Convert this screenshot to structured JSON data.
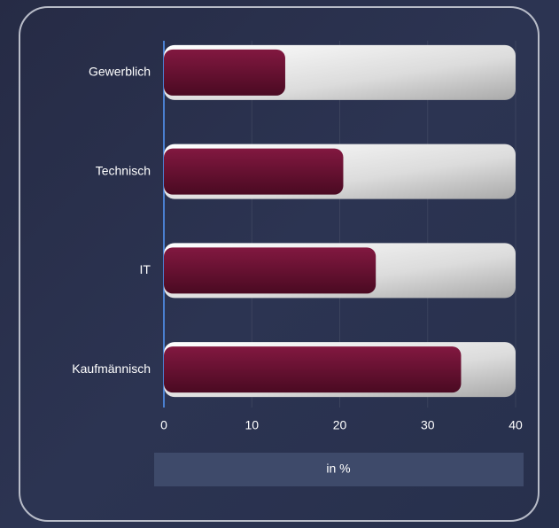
{
  "chart_data": {
    "type": "barh",
    "categories": [
      "Gewerblich",
      "Technisch",
      "IT",
      "Kaufmännisch"
    ],
    "values": [
      13.8,
      20.4,
      24.1,
      33.8
    ],
    "color": "#6e1232",
    "xlim": [
      0,
      40
    ],
    "xticks": [
      0,
      10,
      20,
      30,
      40
    ],
    "xlabel": "in %",
    "grid": true
  }
}
